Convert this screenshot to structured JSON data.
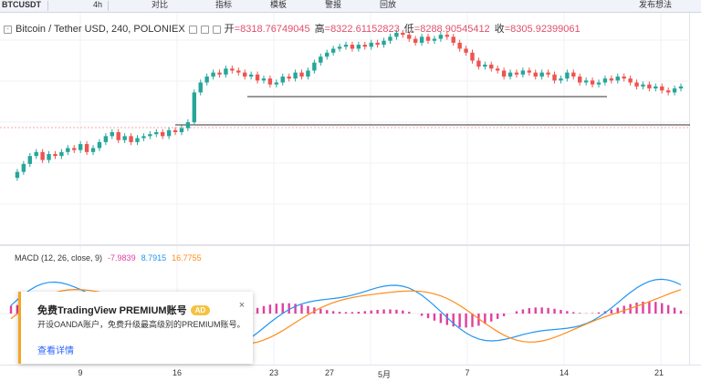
{
  "toolbar": {
    "symbol": "BTCUSDT",
    "interval": "4h",
    "compare": "对比",
    "indicators": "指标",
    "templates": "模板",
    "alert": "警报",
    "replay": "回放",
    "publish": "发布想法"
  },
  "legend": {
    "title": "Bitcoin / Tether USD, 240, POLONIEX",
    "open_label": "开",
    "open": "=8318.76749045",
    "high_label": "高",
    "high": "=8322.61152823",
    "low_label": "低",
    "low": "=8288.90545412",
    "close_label": "收",
    "close": "=8305.92399061"
  },
  "macd": {
    "label": "MACD (12, 26, close, 9)",
    "hist": "-7.9839",
    "macd": "8.7915",
    "signal": "16.7755",
    "colors": {
      "hist": "#e040a0",
      "macd": "#2196f3",
      "signal": "#ff8c1a"
    }
  },
  "xaxis": {
    "ticks": [
      "9",
      "16",
      "23",
      "27",
      "5月",
      "7",
      "14",
      "21"
    ]
  },
  "popup": {
    "title": "免费TradingView PREMIUM账号",
    "badge": "AD",
    "body": "开设OANDA账户，免费升级最高级别的PREMIUM账号。",
    "link": "查看详情",
    "close": "×"
  },
  "colors": {
    "up": "#26a69a",
    "down": "#ef5350",
    "accent": "#f5a623"
  },
  "chart_data": {
    "type": "candlestick",
    "title": "Bitcoin / Tether USD, 240, POLONIEX",
    "candles_relative": [
      0.73,
      0.7,
      0.66,
      0.62,
      0.6,
      0.64,
      0.61,
      0.62,
      0.6,
      0.58,
      0.59,
      0.56,
      0.6,
      0.58,
      0.55,
      0.52,
      0.5,
      0.54,
      0.52,
      0.55,
      0.53,
      0.52,
      0.51,
      0.5,
      0.52,
      0.49,
      0.5,
      0.48,
      0.45,
      0.3,
      0.25,
      0.22,
      0.2,
      0.21,
      0.18,
      0.19,
      0.2,
      0.22,
      0.21,
      0.24,
      0.23,
      0.26,
      0.25,
      0.22,
      0.23,
      0.2,
      0.22,
      0.19,
      0.15,
      0.12,
      0.1,
      0.08,
      0.07,
      0.06,
      0.08,
      0.06,
      0.07,
      0.05,
      0.06,
      0.04,
      0.02,
      0.0,
      0.01,
      0.03,
      0.05,
      0.02,
      0.04,
      0.03,
      0.01,
      0.02,
      0.05,
      0.08,
      0.1,
      0.14,
      0.17,
      0.16,
      0.18,
      0.19,
      0.22,
      0.2,
      0.21,
      0.19,
      0.2,
      0.22,
      0.2,
      0.21,
      0.24,
      0.23,
      0.2,
      0.22,
      0.25,
      0.24,
      0.26,
      0.25,
      0.23,
      0.24,
      0.22,
      0.23,
      0.25,
      0.27,
      0.26,
      0.28,
      0.27,
      0.29,
      0.3,
      0.28,
      0.27
    ]
  }
}
